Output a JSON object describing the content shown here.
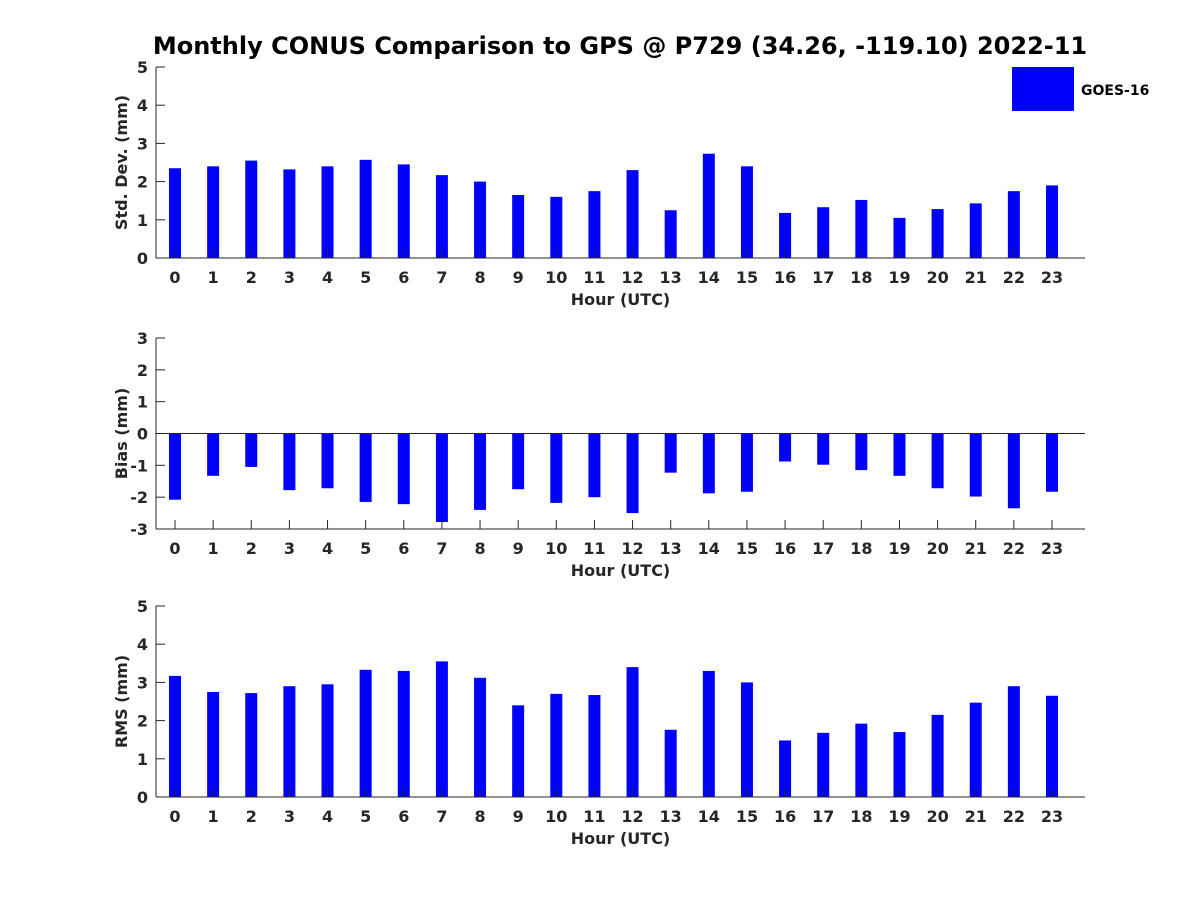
{
  "chart_title": "Monthly CONUS Comparison to GPS @ P729 (34.26, -119.10) 2022-11",
  "legend": {
    "label": "GOES-16",
    "color": "#0000ff",
    "placement": "top-right"
  },
  "chart_data": [
    {
      "type": "bar",
      "xlabel": "Hour (UTC)",
      "ylabel": "Std. Dev. (mm)",
      "ylim": [
        0,
        5
      ],
      "yticks": [
        "0",
        "1",
        "2",
        "3",
        "4",
        "5"
      ],
      "categories": [
        "0",
        "1",
        "2",
        "3",
        "4",
        "5",
        "6",
        "7",
        "8",
        "9",
        "10",
        "11",
        "12",
        "13",
        "14",
        "15",
        "16",
        "17",
        "18",
        "19",
        "20",
        "21",
        "22",
        "23"
      ],
      "series": [
        {
          "name": "GOES-16",
          "color": "#0000ff",
          "values": [
            2.35,
            2.4,
            2.55,
            2.32,
            2.4,
            2.57,
            2.45,
            2.17,
            2.0,
            1.65,
            1.6,
            1.75,
            2.3,
            1.25,
            2.73,
            2.4,
            1.18,
            1.33,
            1.52,
            1.05,
            1.28,
            1.43,
            1.75,
            1.9
          ]
        }
      ]
    },
    {
      "type": "bar",
      "xlabel": "Hour (UTC)",
      "ylabel": "Bias (mm)",
      "ylim": [
        -3,
        3
      ],
      "yticks": [
        "-3",
        "-2",
        "-1",
        "0",
        "1",
        "2",
        "3"
      ],
      "categories": [
        "0",
        "1",
        "2",
        "3",
        "4",
        "5",
        "6",
        "7",
        "8",
        "9",
        "10",
        "11",
        "12",
        "13",
        "14",
        "15",
        "16",
        "17",
        "18",
        "19",
        "20",
        "21",
        "22",
        "23"
      ],
      "series": [
        {
          "name": "GOES-16",
          "color": "#0000ff",
          "values": [
            -2.08,
            -1.33,
            -1.05,
            -1.78,
            -1.72,
            -2.15,
            -2.22,
            -2.78,
            -2.4,
            -1.75,
            -2.18,
            -2.0,
            -2.5,
            -1.23,
            -1.88,
            -1.83,
            -0.88,
            -0.98,
            -1.15,
            -1.33,
            -1.72,
            -1.98,
            -2.35,
            -1.83
          ]
        }
      ]
    },
    {
      "type": "bar",
      "xlabel": "Hour (UTC)",
      "ylabel": "RMS (mm)",
      "ylim": [
        0,
        5
      ],
      "yticks": [
        "0",
        "1",
        "2",
        "3",
        "4",
        "5"
      ],
      "categories": [
        "0",
        "1",
        "2",
        "3",
        "4",
        "5",
        "6",
        "7",
        "8",
        "9",
        "10",
        "11",
        "12",
        "13",
        "14",
        "15",
        "16",
        "17",
        "18",
        "19",
        "20",
        "21",
        "22",
        "23"
      ],
      "series": [
        {
          "name": "GOES-16",
          "color": "#0000ff",
          "values": [
            3.17,
            2.75,
            2.72,
            2.9,
            2.95,
            3.33,
            3.3,
            3.55,
            3.12,
            2.4,
            2.7,
            2.67,
            3.4,
            1.76,
            3.3,
            3.0,
            1.48,
            1.68,
            1.92,
            1.7,
            2.15,
            2.47,
            2.9,
            2.65
          ]
        }
      ]
    }
  ]
}
